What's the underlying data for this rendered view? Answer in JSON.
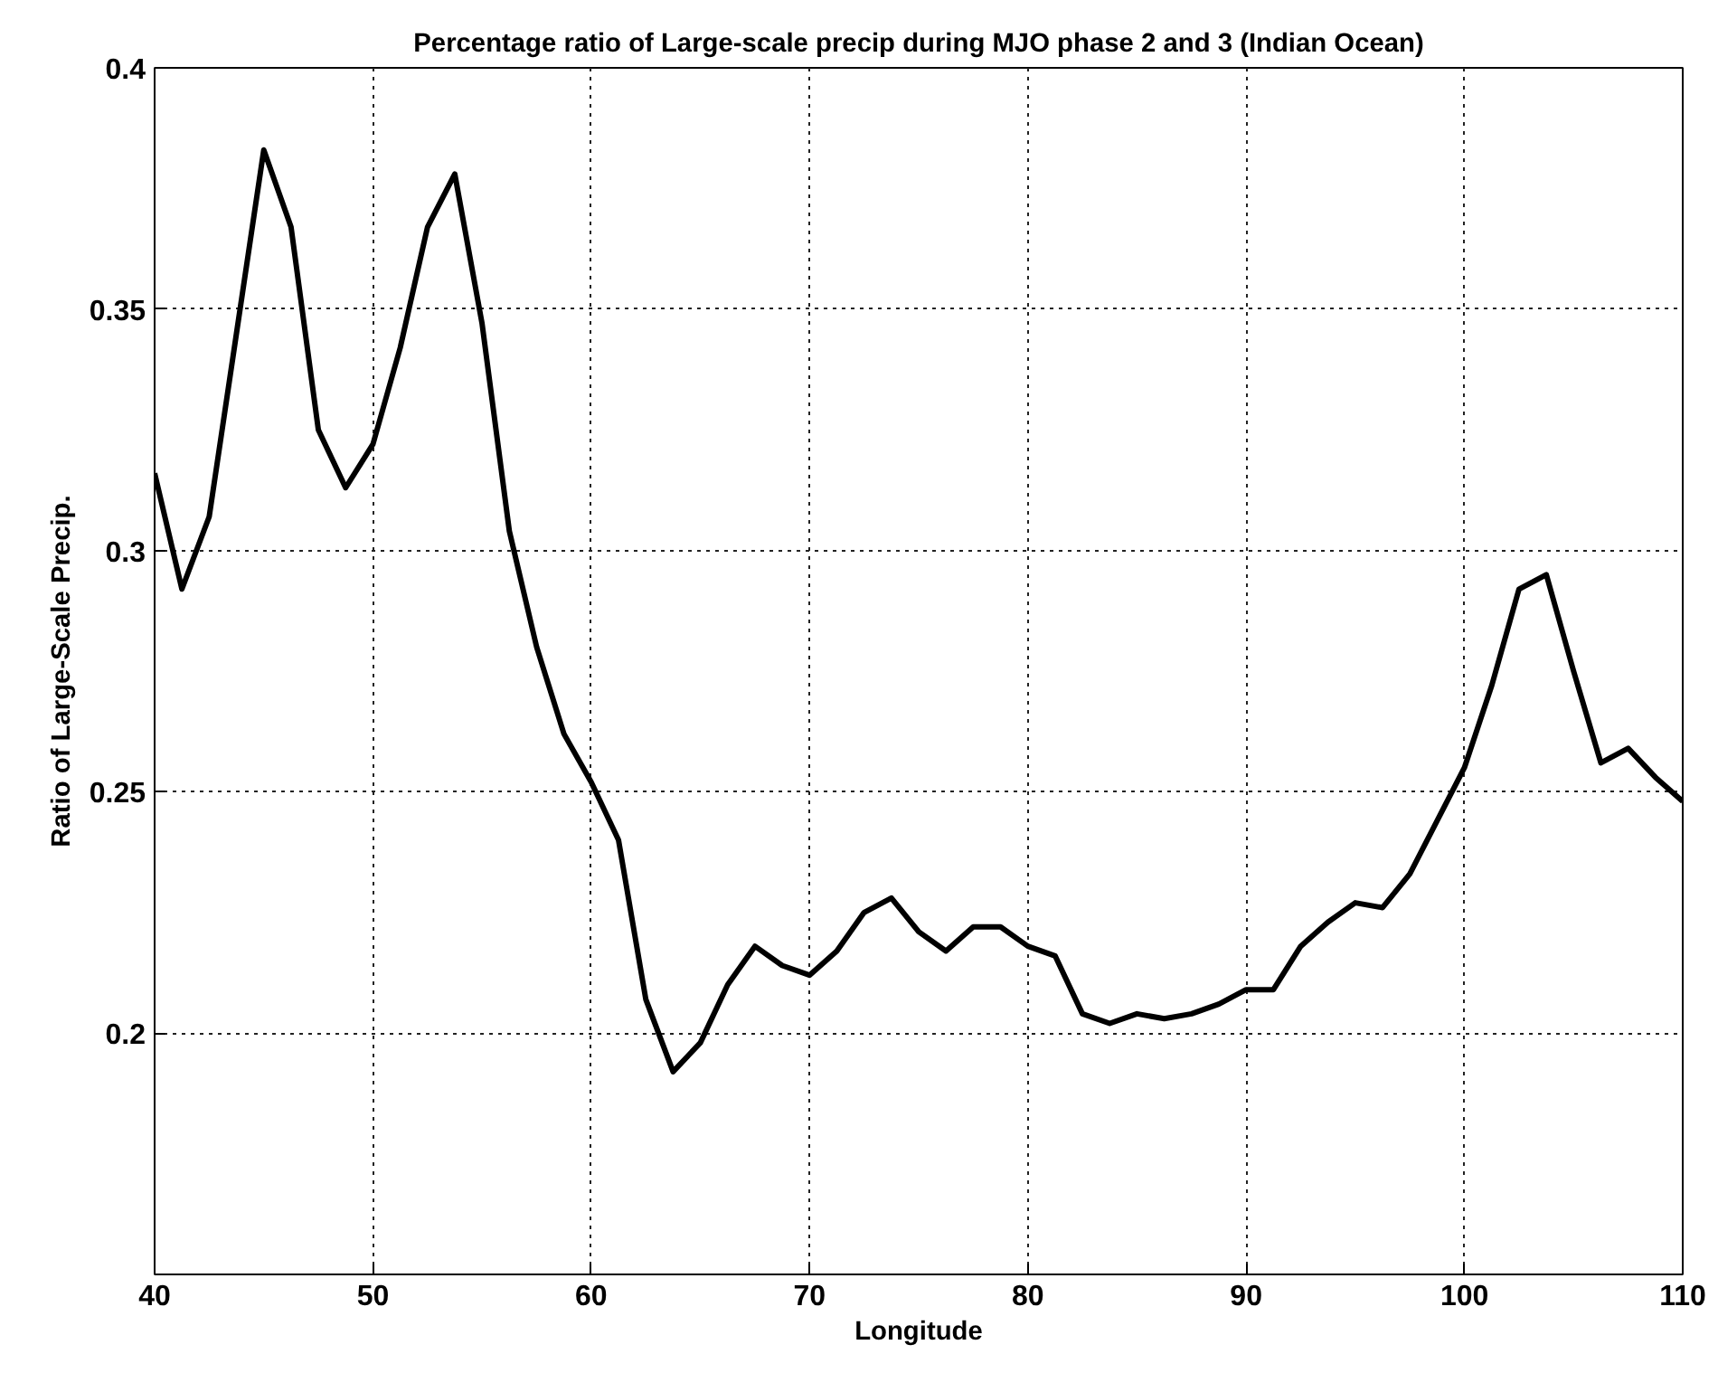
{
  "chart_data": {
    "type": "line",
    "title": "Percentage ratio of Large-scale precip during MJO phase 2 and 3 (Indian Ocean)",
    "xlabel": "Longitude",
    "ylabel": "Ratio of Large-Scale Precip.",
    "x": [
      40,
      41.25,
      42.5,
      43.75,
      45,
      46.25,
      47.5,
      48.75,
      50,
      51.25,
      52.5,
      53.75,
      55,
      56.25,
      57.5,
      58.75,
      60,
      61.25,
      62.5,
      63.75,
      65,
      66.25,
      67.5,
      68.75,
      70,
      71.25,
      72.5,
      73.75,
      75,
      76.25,
      77.5,
      78.75,
      80,
      81.25,
      82.5,
      83.75,
      85,
      86.25,
      87.5,
      88.75,
      90,
      91.25,
      92.5,
      93.75,
      95,
      96.25,
      97.5,
      98.75,
      100,
      101.25,
      102.5,
      103.75,
      105,
      106.25,
      107.5,
      108.75,
      110
    ],
    "series": [
      {
        "color": "#000000",
        "values": [
          0.316,
          0.292,
          0.307,
          0.345,
          0.383,
          0.367,
          0.325,
          0.313,
          0.322,
          0.342,
          0.367,
          0.378,
          0.347,
          0.304,
          0.28,
          0.262,
          0.252,
          0.24,
          0.207,
          0.192,
          0.198,
          0.21,
          0.218,
          0.214,
          0.212,
          0.217,
          0.225,
          0.228,
          0.221,
          0.217,
          0.222,
          0.222,
          0.218,
          0.216,
          0.204,
          0.202,
          0.204,
          0.203,
          0.204,
          0.206,
          0.209,
          0.209,
          0.218,
          0.223,
          0.227,
          0.226,
          0.233,
          0.244,
          0.255,
          0.272,
          0.292,
          0.295,
          0.275,
          0.256,
          0.259,
          0.253,
          0.248
        ]
      }
    ],
    "xlim": [
      40,
      110
    ],
    "ylim": [
      0.15,
      0.4
    ],
    "xticks": [
      40,
      50,
      60,
      70,
      80,
      90,
      100,
      110
    ],
    "yticks": [
      0.2,
      0.25,
      0.3,
      0.35,
      0.4
    ],
    "grid": true,
    "line_style": "solid"
  }
}
